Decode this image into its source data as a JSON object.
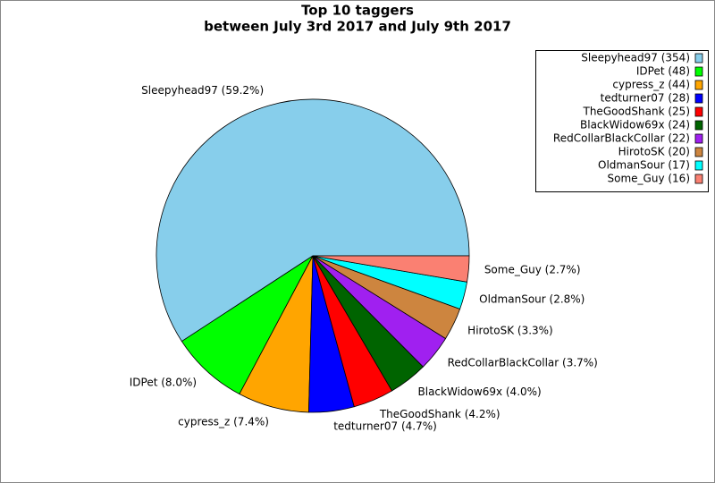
{
  "chart_data": {
    "type": "pie",
    "title": "Top 10 taggers",
    "subtitle": "between July 3rd 2017 and July 9th 2017",
    "categories": [
      "Sleepyhead97 (354)",
      "IDPet (48)",
      "cypress_z (44)",
      "tedturner07 (28)",
      "TheGoodShank (25)",
      "BlackWidow69x (24)",
      "RedCollarBlackCollar (22)",
      "HirotoSK (20)",
      "OldmanSour (17)",
      "Some_Guy (16)"
    ],
    "values": [
      354,
      48,
      44,
      28,
      25,
      24,
      22,
      20,
      17,
      16
    ],
    "value_labels": [
      "Sleepyhead97 (59.2%)",
      "IDPet (8.0%)",
      "cypress_z (7.4%)",
      "tedturner07 (4.7%)",
      "TheGoodShank (4.2%)",
      "BlackWidow69x (4.0%)",
      "RedCollarBlackCollar (3.7%)",
      "HirotoSK (3.3%)",
      "OldmanSour (2.8%)",
      "Some_Guy (2.7%)"
    ],
    "colors": [
      "#87ceeb",
      "#00ff00",
      "#ffa500",
      "#0000ff",
      "#ff0000",
      "#006400",
      "#a020f0",
      "#cd853f",
      "#00ffff",
      "#fa8072"
    ],
    "legend": "upper right"
  }
}
